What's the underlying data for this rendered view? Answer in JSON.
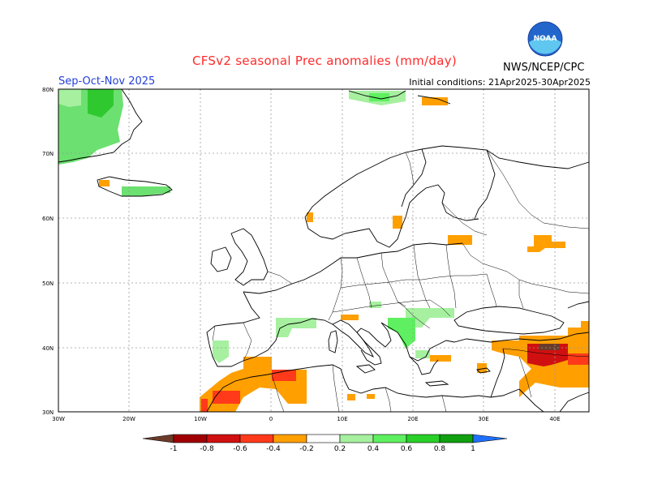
{
  "title": "CFSv2 seasonal Prec anomalies (mm/day)",
  "season": "Sep-Oct-Nov 2025",
  "initial_conditions": "Initial conditions: 21Apr2025-30Apr2025",
  "credit": "NWS/NCEP/CPC",
  "logo_text": "NOAA",
  "lat_ticks": [
    "80N",
    "70N",
    "60N",
    "50N",
    "40N",
    "30N"
  ],
  "lon_ticks": [
    "30W",
    "20W",
    "10W",
    "0",
    "10E",
    "20E",
    "30E",
    "40E"
  ],
  "colorbar": {
    "labels": [
      "-1",
      "-0.8",
      "-0.6",
      "-0.4",
      "-0.2",
      "0.2",
      "0.4",
      "0.6",
      "0.8",
      "1"
    ],
    "colors": [
      "#6b3b2a",
      "#a00000",
      "#d01010",
      "#ff3a1a",
      "#ff9f00",
      "#ffffff",
      "#a6f0a0",
      "#5ef060",
      "#28d028",
      "#10a010",
      "#2070ff"
    ]
  },
  "map": {
    "projection": "lat-lon",
    "lon_range": [
      -30,
      45
    ],
    "lat_range": [
      30,
      80
    ],
    "grid": true
  }
}
